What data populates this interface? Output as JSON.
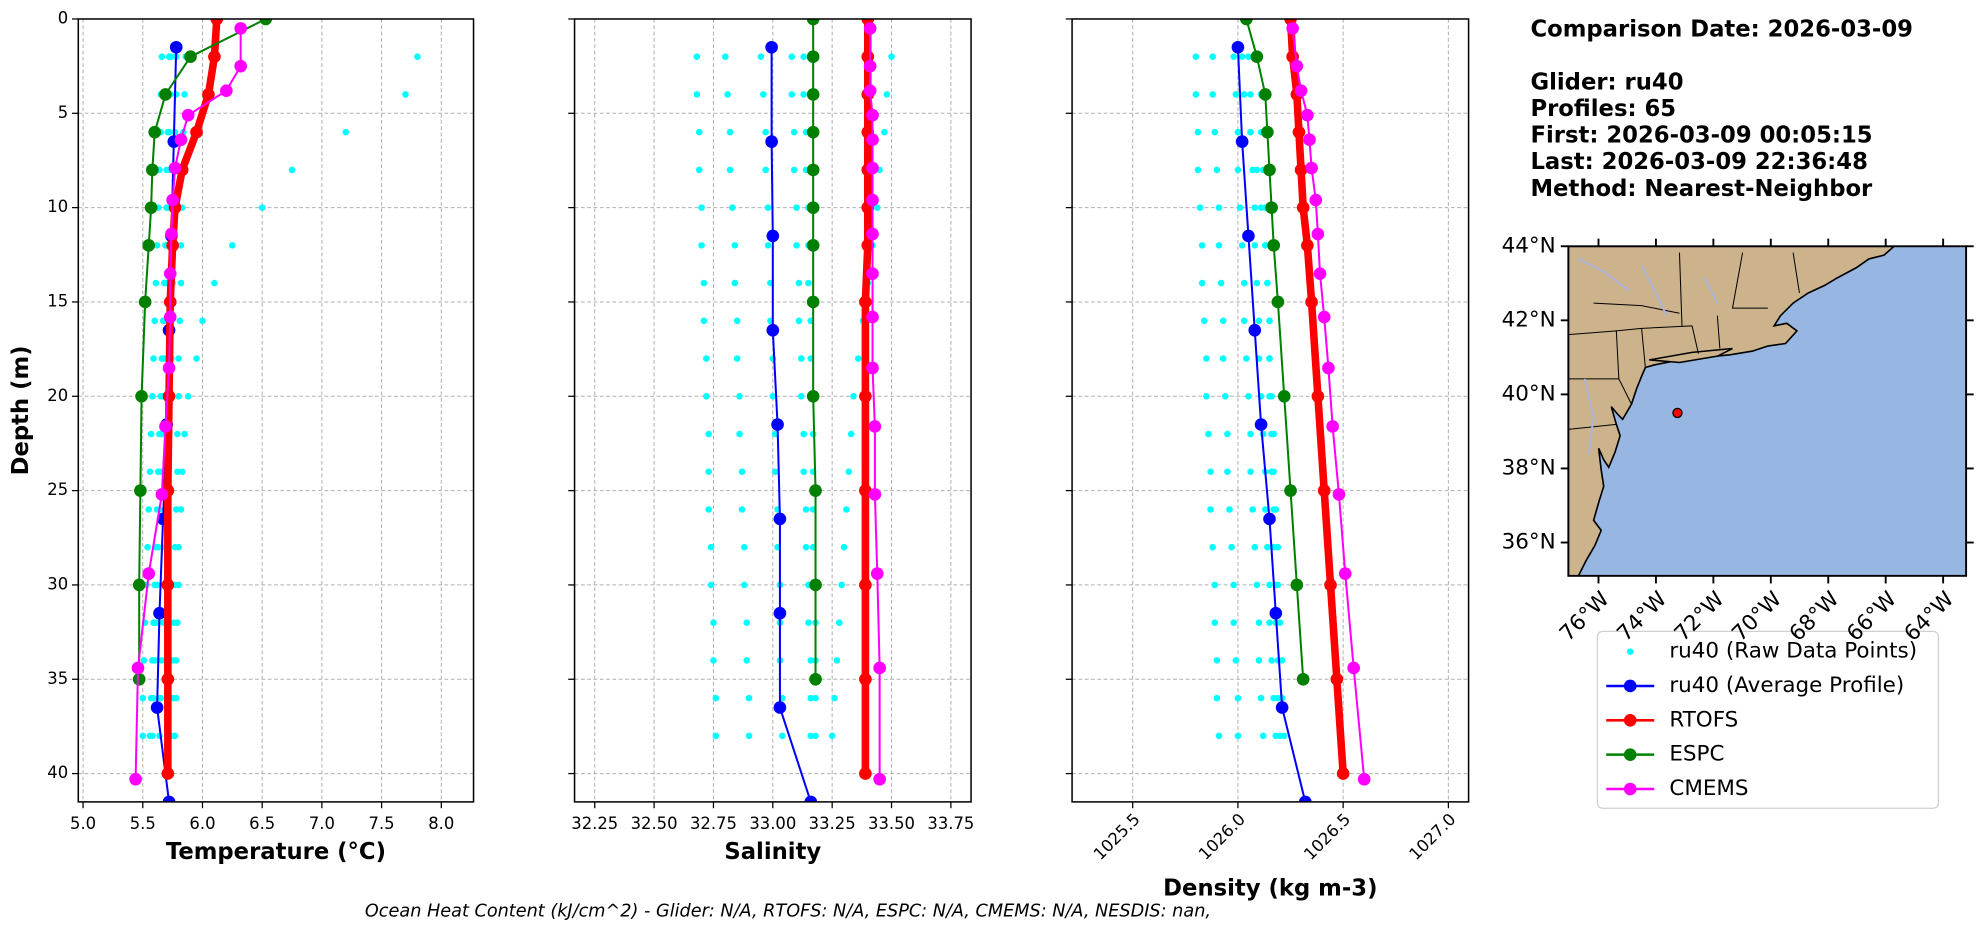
{
  "chart_data": [
    {
      "type": "profile",
      "annotations": [
        "Comparison Date: 2026-03-09",
        "Glider: ru40",
        "Profiles: 65",
        "First: 2026-03-09 00:05:15",
        "Last: 2026-03-09 22:36:48",
        "Method: Nearest-Neighbor"
      ],
      "footnote": "Ocean Heat Content (kJ/cm^2) - Glider: N/A,  RTOFS: N/A,  ESPC: N/A,  CMEMS: N/A,  NESDIS: nan,",
      "ylabel": "Depth (m)",
      "ylim": [
        41.5,
        0
      ],
      "yticks": [
        0,
        5,
        10,
        15,
        20,
        25,
        30,
        35,
        40
      ],
      "grid": true,
      "panels": [
        {
          "xlabel": "Temperature (°C)",
          "xlim": [
            4.96,
            8.27
          ],
          "xticks": [
            {
              "value": 5,
              "label": "5.0"
            },
            5.5,
            {
              "value": 6,
              "label": "6.0"
            },
            6.5,
            {
              "value": 7,
              "label": "7.0"
            },
            7.5,
            {
              "value": 8,
              "label": "8.0"
            }
          ]
        },
        {
          "xlabel": "Salinity",
          "xlim": [
            32.165,
            33.835
          ],
          "xticks": [
            32.25,
            {
              "value": 32.5,
              "label": "32.50"
            },
            32.75,
            {
              "value": 33,
              "label": "33.00"
            },
            33.25,
            {
              "value": 33.5,
              "label": "33.50"
            },
            33.75
          ]
        },
        {
          "xlabel": "Density (kg m-3)",
          "xlim": [
            1025.212,
            1027.096
          ],
          "xtick_rotation": 45,
          "xticks": [
            1025.5,
            {
              "value": 1026,
              "label": "1026.0"
            },
            1026.5,
            {
              "value": 1027,
              "label": "1027.0"
            }
          ]
        }
      ],
      "series": [
        {
          "name": "ru40 (Raw Data Points)",
          "color": "#00ffff",
          "style": "scatter",
          "depth": [
            2,
            4,
            6,
            8,
            10,
            12,
            14,
            16,
            18,
            20,
            22,
            24,
            26,
            28,
            30,
            32,
            34,
            36,
            38
          ],
          "values": [
            [
              [
                7.8,
                7.7,
                7.2,
                6.75,
                6.5,
                6.25,
                6.1,
                6.0,
                5.95,
                5.88,
                5.85,
                5.83,
                5.82,
                5.8,
                5.8,
                5.79,
                5.78,
                5.78,
                5.77
              ],
              [
                5.86,
                5.85,
                5.84,
                5.84,
                5.83,
                5.82,
                5.82,
                5.81,
                5.8,
                5.8,
                5.79,
                5.79,
                5.78,
                5.77,
                5.77,
                5.76,
                5.75,
                5.75,
                5.74
              ],
              [
                5.78,
                5.78,
                5.77,
                5.77,
                5.76,
                5.76,
                5.75,
                5.74,
                5.74,
                5.73,
                5.72,
                5.71,
                5.7,
                5.69,
                5.68,
                5.67,
                5.66,
                5.65,
                5.64
              ],
              [
                5.72,
                5.72,
                5.71,
                5.7,
                5.7,
                5.69,
                5.68,
                5.67,
                5.66,
                5.65,
                5.64,
                5.63,
                5.62,
                5.61,
                5.6,
                5.59,
                5.58,
                5.57,
                5.56
              ],
              [
                5.66,
                5.65,
                5.65,
                5.64,
                5.63,
                5.62,
                5.61,
                5.6,
                5.59,
                5.58,
                5.57,
                5.56,
                5.55,
                5.54,
                5.53,
                5.52,
                5.51,
                5.5,
                5.5
              ],
              [
                5.74,
                5.73,
                5.72,
                5.72,
                5.71,
                5.7,
                5.7,
                5.69,
                5.68,
                5.67,
                5.66,
                5.65,
                5.64,
                5.63,
                5.62,
                5.61,
                5.6,
                5.59,
                5.58
              ]
            ],
            [
              [
                33.5,
                33.48,
                33.47,
                33.45,
                33.44,
                33.42,
                33.4,
                33.38,
                33.36,
                33.34,
                33.33,
                33.32,
                33.31,
                33.3,
                33.29,
                33.28,
                33.27,
                33.26,
                33.25
              ],
              [
                33.13,
                33.13,
                33.14,
                33.14,
                33.15,
                33.15,
                33.15,
                33.16,
                33.16,
                33.16,
                33.17,
                33.17,
                33.17,
                33.17,
                33.18,
                33.18,
                33.18,
                33.18,
                33.18
              ],
              [
                32.95,
                32.96,
                32.97,
                32.97,
                32.98,
                32.98,
                32.99,
                32.99,
                33.0,
                33.0,
                33.01,
                33.01,
                33.02,
                33.02,
                33.03,
                33.03,
                33.03,
                33.04,
                33.04
              ],
              [
                32.8,
                32.81,
                32.82,
                32.82,
                32.83,
                32.84,
                32.84,
                32.85,
                32.85,
                32.86,
                32.86,
                32.87,
                32.87,
                32.88,
                32.88,
                32.89,
                32.89,
                32.9,
                32.9
              ],
              [
                32.68,
                32.68,
                32.69,
                32.69,
                32.7,
                32.7,
                32.71,
                32.71,
                32.72,
                32.72,
                32.73,
                32.73,
                32.73,
                32.74,
                32.74,
                32.75,
                32.75,
                32.76,
                32.76
              ],
              [
                33.08,
                33.08,
                33.09,
                33.09,
                33.1,
                33.1,
                33.11,
                33.11,
                33.12,
                33.12,
                33.13,
                33.13,
                33.14,
                33.14,
                33.15,
                33.15,
                33.16,
                33.16,
                33.16
              ]
            ],
            [
              [
                1026.02,
                1026.03,
                1026.06,
                1026.09,
                1026.11,
                1026.13,
                1026.14,
                1026.15,
                1026.15,
                1026.15,
                1026.16,
                1026.16,
                1026.17,
                1026.17,
                1026.18,
                1026.18,
                1026.19,
                1026.19,
                1026.2
              ],
              [
                1026.1,
                1026.11,
                1026.11,
                1026.12,
                1026.13,
                1026.13,
                1026.14,
                1026.15,
                1026.15,
                1026.16,
                1026.17,
                1026.17,
                1026.18,
                1026.19,
                1026.19,
                1026.2,
                1026.21,
                1026.21,
                1026.22
              ],
              [
                1025.98,
                1025.99,
                1026.0,
                1026.0,
                1026.01,
                1026.02,
                1026.03,
                1026.03,
                1026.04,
                1026.05,
                1026.06,
                1026.06,
                1026.07,
                1026.08,
                1026.09,
                1026.1,
                1026.1,
                1026.11,
                1026.12
              ],
              [
                1025.88,
                1025.88,
                1025.89,
                1025.9,
                1025.91,
                1025.91,
                1025.92,
                1025.93,
                1025.93,
                1025.94,
                1025.95,
                1025.95,
                1025.96,
                1025.97,
                1025.98,
                1025.98,
                1025.99,
                1026.0,
                1026.0
              ],
              [
                1025.8,
                1025.8,
                1025.81,
                1025.81,
                1025.82,
                1025.83,
                1025.83,
                1025.84,
                1025.85,
                1025.85,
                1025.86,
                1025.87,
                1025.87,
                1025.88,
                1025.89,
                1025.89,
                1025.9,
                1025.9,
                1025.91
              ],
              [
                1026.05,
                1026.06,
                1026.06,
                1026.07,
                1026.08,
                1026.08,
                1026.09,
                1026.1,
                1026.1,
                1026.11,
                1026.12,
                1026.13,
                1026.13,
                1026.14,
                1026.15,
                1026.15,
                1026.16,
                1026.17,
                1026.18
              ]
            ]
          ]
        },
        {
          "name": "ru40 (Average Profile)",
          "color": "#0000ff",
          "style": "line",
          "linewidth": 1.6,
          "depth": [
            1.5,
            6.5,
            11.5,
            16.5,
            21.5,
            26.5,
            31.5,
            36.5,
            41.5
          ],
          "values": [
            [
              5.78,
              5.76,
              5.74,
              5.72,
              5.7,
              5.67,
              5.64,
              5.62,
              5.72
            ],
            [
              32.995,
              32.995,
              33.0,
              33.0,
              33.02,
              33.03,
              33.03,
              33.03,
              33.16
            ],
            [
              1026.0,
              1026.02,
              1026.05,
              1026.08,
              1026.11,
              1026.15,
              1026.18,
              1026.21,
              1026.32
            ]
          ]
        },
        {
          "name": "RTOFS",
          "color": "#ff0000",
          "style": "line",
          "linewidth": 6,
          "depth": [
            0,
            2,
            4,
            6,
            8,
            10,
            12,
            15,
            20,
            25,
            30,
            35,
            40
          ],
          "values": [
            [
              6.12,
              6.1,
              6.05,
              5.95,
              5.83,
              5.77,
              5.75,
              5.73,
              5.72,
              5.71,
              5.71,
              5.71,
              5.71
            ],
            [
              33.4,
              33.4,
              33.4,
              33.4,
              33.4,
              33.4,
              33.4,
              33.39,
              33.39,
              33.39,
              33.39,
              33.39,
              33.39
            ],
            [
              1026.25,
              1026.26,
              1026.28,
              1026.29,
              1026.3,
              1026.31,
              1026.33,
              1026.35,
              1026.38,
              1026.41,
              1026.44,
              1026.47,
              1026.5
            ]
          ]
        },
        {
          "name": "ESPC",
          "color": "#008000",
          "style": "line",
          "linewidth": 1.6,
          "depth": [
            0,
            2,
            4,
            6,
            8,
            10,
            12,
            15,
            20,
            25,
            30,
            35
          ],
          "values": [
            [
              6.53,
              5.9,
              5.69,
              5.6,
              5.58,
              5.57,
              5.55,
              5.52,
              5.49,
              5.48,
              5.47,
              5.47
            ],
            [
              33.17,
              33.17,
              33.17,
              33.17,
              33.17,
              33.17,
              33.17,
              33.17,
              33.17,
              33.18,
              33.18,
              33.18
            ],
            [
              1026.04,
              1026.09,
              1026.13,
              1026.14,
              1026.15,
              1026.16,
              1026.17,
              1026.19,
              1026.22,
              1026.25,
              1026.28,
              1026.31
            ]
          ]
        },
        {
          "name": "CMEMS",
          "color": "#ff00ff",
          "style": "line",
          "linewidth": 1.6,
          "depth": [
            0.5,
            2.5,
            3.8,
            5.1,
            6.4,
            7.9,
            9.6,
            11.4,
            13.5,
            15.8,
            18.5,
            21.6,
            25.2,
            29.4,
            34.4,
            40.3
          ],
          "values": [
            [
              6.32,
              6.32,
              6.2,
              5.88,
              5.82,
              5.77,
              5.75,
              5.74,
              5.73,
              5.73,
              5.72,
              5.69,
              5.66,
              5.55,
              5.46,
              5.44
            ],
            [
              33.41,
              33.41,
              33.41,
              33.42,
              33.42,
              33.42,
              33.42,
              33.42,
              33.42,
              33.42,
              33.42,
              33.43,
              33.43,
              33.44,
              33.45,
              33.45
            ],
            [
              1026.26,
              1026.28,
              1026.3,
              1026.33,
              1026.34,
              1026.35,
              1026.37,
              1026.38,
              1026.39,
              1026.41,
              1026.43,
              1026.45,
              1026.48,
              1026.51,
              1026.55,
              1026.6
            ]
          ]
        }
      ]
    },
    {
      "type": "map",
      "xlim": [
        -77.05,
        -63.2
      ],
      "ylim": [
        35.1,
        44
      ],
      "xticks": [
        {
          "value": -76,
          "label": "76°W"
        },
        {
          "value": -74,
          "label": "74°W"
        },
        {
          "value": -72,
          "label": "72°W"
        },
        {
          "value": -70,
          "label": "70°W"
        },
        {
          "value": -68,
          "label": "68°W"
        },
        {
          "value": -66,
          "label": "66°W"
        },
        {
          "value": -64,
          "label": "64°W"
        }
      ],
      "yticks": [
        {
          "value": 36,
          "label": "36°N"
        },
        {
          "value": 38,
          "label": "38°N"
        },
        {
          "value": 40,
          "label": "40°N"
        },
        {
          "value": 42,
          "label": "42°N"
        },
        {
          "value": 44,
          "label": "44°N"
        }
      ],
      "point": {
        "lon": -73.25,
        "lat": 39.5,
        "color": "#ff0000"
      }
    }
  ]
}
